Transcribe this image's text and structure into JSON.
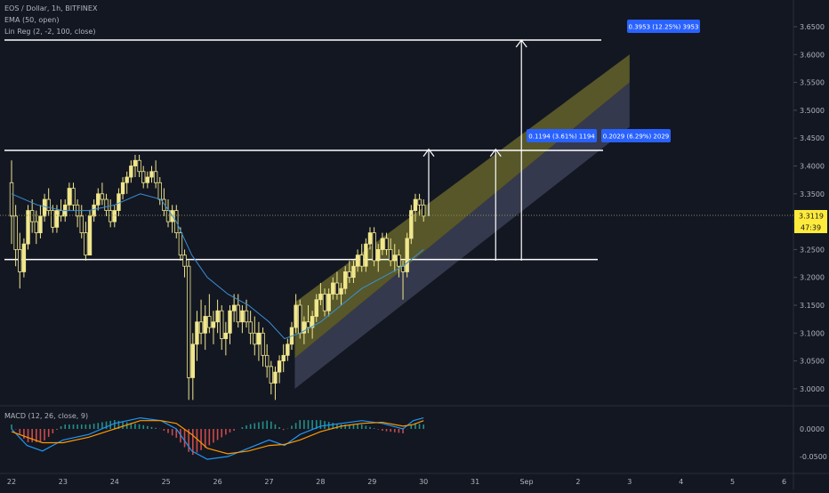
{
  "header": {
    "symbol_line": "EOS / Dollar, 1h, BITFINEX",
    "indicator_1": "EMA (50, open)",
    "indicator_2": "Lin Reg (2, -2, 100, close)"
  },
  "macd": {
    "label": "MACD (12, 26, close, 9)"
  },
  "price": {
    "last": "3.3119",
    "countdown": "47:39"
  },
  "annotations": [
    {
      "text": "0.1194 (3.61%) 1194"
    },
    {
      "text": "0.2029 (6.29%) 2029"
    },
    {
      "text": "0.3953 (12.25%) 3953"
    }
  ],
  "colors": {
    "background": "#131722",
    "candle": "#f0e68c",
    "ema": "#3a8fd8",
    "channel_upper": "#7d7a2e",
    "channel_lower": "#3c4055",
    "macd_line": "#2196f3",
    "signal_line": "#ff9800",
    "hist_up": "#26a69a",
    "hist_down": "#ef5350",
    "pill": "#2962ff",
    "price_tag": "#ffeb3b"
  },
  "chart_data": [
    {
      "type": "candlestick",
      "title": "EOS / Dollar, 1h, BITFINEX",
      "x": [
        "22",
        "23",
        "24",
        "25",
        "26",
        "27",
        "28",
        "29",
        "30",
        "31",
        "Sep",
        "2",
        "3",
        "4",
        "5",
        "6"
      ],
      "yticks": [
        "3.0000",
        "3.0500",
        "3.1000",
        "3.1500",
        "3.2000",
        "3.2500",
        "3.3000",
        "3.3500",
        "3.4000",
        "3.4500",
        "3.5000",
        "3.5500",
        "3.6000",
        "3.6500"
      ],
      "ylim": [
        2.98,
        3.67
      ],
      "grid": false,
      "candles": [
        [
          0.0,
          3.37,
          3.41,
          3.26,
          3.31
        ],
        [
          0.08,
          3.31,
          3.33,
          3.22,
          3.25
        ],
        [
          0.16,
          3.25,
          3.28,
          3.18,
          3.21
        ],
        [
          0.24,
          3.21,
          3.27,
          3.2,
          3.26
        ],
        [
          0.32,
          3.26,
          3.33,
          3.25,
          3.32
        ],
        [
          0.4,
          3.32,
          3.34,
          3.28,
          3.3
        ],
        [
          0.48,
          3.3,
          3.32,
          3.26,
          3.28
        ],
        [
          0.56,
          3.28,
          3.33,
          3.27,
          3.31
        ],
        [
          0.64,
          3.31,
          3.35,
          3.3,
          3.34
        ],
        [
          0.72,
          3.34,
          3.36,
          3.31,
          3.32
        ],
        [
          0.8,
          3.32,
          3.33,
          3.28,
          3.29
        ],
        [
          0.88,
          3.29,
          3.33,
          3.28,
          3.32
        ],
        [
          0.96,
          3.32,
          3.34,
          3.3,
          3.31
        ],
        [
          1.04,
          3.31,
          3.34,
          3.3,
          3.33
        ],
        [
          1.12,
          3.33,
          3.37,
          3.32,
          3.36
        ],
        [
          1.2,
          3.36,
          3.37,
          3.32,
          3.33
        ],
        [
          1.28,
          3.33,
          3.34,
          3.29,
          3.31
        ],
        [
          1.36,
          3.31,
          3.33,
          3.27,
          3.28
        ],
        [
          1.44,
          3.28,
          3.3,
          3.23,
          3.24
        ],
        [
          1.52,
          3.24,
          3.32,
          3.24,
          3.31
        ],
        [
          1.6,
          3.31,
          3.34,
          3.3,
          3.33
        ],
        [
          1.68,
          3.33,
          3.36,
          3.32,
          3.35
        ],
        [
          1.76,
          3.35,
          3.37,
          3.33,
          3.34
        ],
        [
          1.84,
          3.34,
          3.35,
          3.31,
          3.32
        ],
        [
          1.92,
          3.32,
          3.34,
          3.29,
          3.3
        ],
        [
          2.0,
          3.3,
          3.33,
          3.29,
          3.32
        ],
        [
          2.08,
          3.32,
          3.36,
          3.31,
          3.35
        ],
        [
          2.16,
          3.35,
          3.38,
          3.34,
          3.37
        ],
        [
          2.24,
          3.37,
          3.39,
          3.35,
          3.38
        ],
        [
          2.32,
          3.38,
          3.41,
          3.37,
          3.4
        ],
        [
          2.4,
          3.4,
          3.42,
          3.38,
          3.41
        ],
        [
          2.48,
          3.41,
          3.42,
          3.38,
          3.39
        ],
        [
          2.56,
          3.39,
          3.4,
          3.36,
          3.37
        ],
        [
          2.64,
          3.37,
          3.39,
          3.36,
          3.38
        ],
        [
          2.72,
          3.38,
          3.4,
          3.37,
          3.39
        ],
        [
          2.8,
          3.39,
          3.41,
          3.36,
          3.37
        ],
        [
          2.88,
          3.37,
          3.38,
          3.33,
          3.34
        ],
        [
          2.96,
          3.34,
          3.36,
          3.31,
          3.32
        ],
        [
          3.04,
          3.32,
          3.34,
          3.29,
          3.3
        ],
        [
          3.12,
          3.3,
          3.33,
          3.28,
          3.32
        ],
        [
          3.2,
          3.32,
          3.33,
          3.27,
          3.28
        ],
        [
          3.28,
          3.28,
          3.29,
          3.23,
          3.24
        ],
        [
          3.36,
          3.24,
          3.25,
          3.2,
          3.22
        ],
        [
          3.44,
          3.22,
          3.23,
          2.98,
          3.02
        ],
        [
          3.52,
          3.02,
          3.1,
          2.98,
          3.08
        ],
        [
          3.6,
          3.08,
          3.14,
          3.05,
          3.12
        ],
        [
          3.68,
          3.12,
          3.16,
          3.08,
          3.1
        ],
        [
          3.76,
          3.1,
          3.15,
          3.07,
          3.13
        ],
        [
          3.84,
          3.13,
          3.17,
          3.1,
          3.11
        ],
        [
          3.92,
          3.11,
          3.14,
          3.08,
          3.12
        ],
        [
          4.0,
          3.12,
          3.16,
          3.1,
          3.14
        ],
        [
          4.08,
          3.14,
          3.15,
          3.07,
          3.09
        ],
        [
          4.16,
          3.09,
          3.12,
          3.06,
          3.1
        ],
        [
          4.24,
          3.1,
          3.15,
          3.08,
          3.14
        ],
        [
          4.32,
          3.14,
          3.17,
          3.12,
          3.15
        ],
        [
          4.4,
          3.15,
          3.17,
          3.11,
          3.12
        ],
        [
          4.48,
          3.12,
          3.15,
          3.1,
          3.14
        ],
        [
          4.56,
          3.14,
          3.16,
          3.11,
          3.12
        ],
        [
          4.64,
          3.12,
          3.14,
          3.08,
          3.1
        ],
        [
          4.72,
          3.1,
          3.13,
          3.06,
          3.08
        ],
        [
          4.8,
          3.08,
          3.12,
          3.05,
          3.1
        ],
        [
          4.88,
          3.1,
          3.11,
          3.04,
          3.06
        ],
        [
          4.96,
          3.06,
          3.08,
          3.02,
          3.04
        ],
        [
          5.04,
          3.04,
          3.05,
          2.99,
          3.01
        ],
        [
          5.12,
          3.01,
          3.04,
          2.98,
          3.03
        ],
        [
          5.2,
          3.03,
          3.06,
          3.01,
          3.05
        ],
        [
          5.28,
          3.05,
          3.08,
          3.03,
          3.06
        ],
        [
          5.36,
          3.06,
          3.09,
          3.05,
          3.08
        ],
        [
          5.44,
          3.08,
          3.12,
          3.07,
          3.11
        ],
        [
          5.52,
          3.11,
          3.17,
          3.1,
          3.15
        ],
        [
          5.6,
          3.15,
          3.16,
          3.09,
          3.1
        ],
        [
          5.68,
          3.1,
          3.13,
          3.08,
          3.12
        ],
        [
          5.76,
          3.12,
          3.15,
          3.1,
          3.11
        ],
        [
          5.84,
          3.11,
          3.14,
          3.09,
          3.13
        ],
        [
          5.92,
          3.13,
          3.17,
          3.12,
          3.16
        ],
        [
          6.0,
          3.16,
          3.19,
          3.15,
          3.17
        ],
        [
          6.08,
          3.17,
          3.18,
          3.13,
          3.14
        ],
        [
          6.16,
          3.14,
          3.18,
          3.13,
          3.17
        ],
        [
          6.24,
          3.17,
          3.2,
          3.16,
          3.19
        ],
        [
          6.32,
          3.19,
          3.21,
          3.16,
          3.17
        ],
        [
          6.4,
          3.17,
          3.19,
          3.15,
          3.18
        ],
        [
          6.48,
          3.18,
          3.22,
          3.17,
          3.21
        ],
        [
          6.56,
          3.21,
          3.23,
          3.19,
          3.2
        ],
        [
          6.64,
          3.2,
          3.23,
          3.19,
          3.22
        ],
        [
          6.72,
          3.22,
          3.25,
          3.21,
          3.24
        ],
        [
          6.8,
          3.24,
          3.26,
          3.21,
          3.22
        ],
        [
          6.88,
          3.22,
          3.27,
          3.21,
          3.26
        ],
        [
          6.96,
          3.26,
          3.29,
          3.25,
          3.28
        ],
        [
          7.04,
          3.28,
          3.29,
          3.22,
          3.23
        ],
        [
          7.12,
          3.23,
          3.26,
          3.21,
          3.25
        ],
        [
          7.2,
          3.25,
          3.28,
          3.24,
          3.27
        ],
        [
          7.28,
          3.27,
          3.28,
          3.24,
          3.25
        ],
        [
          7.36,
          3.25,
          3.27,
          3.22,
          3.23
        ],
        [
          7.44,
          3.23,
          3.26,
          3.21,
          3.24
        ],
        [
          7.52,
          3.24,
          3.25,
          3.2,
          3.22
        ],
        [
          7.6,
          3.22,
          3.23,
          3.16,
          3.21
        ],
        [
          7.68,
          3.21,
          3.28,
          3.2,
          3.27
        ],
        [
          7.76,
          3.27,
          3.33,
          3.26,
          3.32
        ],
        [
          7.84,
          3.32,
          3.35,
          3.3,
          3.34
        ],
        [
          7.92,
          3.34,
          3.35,
          3.31,
          3.33
        ],
        [
          8.0,
          3.33,
          3.34,
          3.3,
          3.31
        ]
      ],
      "ema": [
        [
          0.0,
          3.35
        ],
        [
          0.5,
          3.33
        ],
        [
          1.0,
          3.32
        ],
        [
          1.5,
          3.32
        ],
        [
          2.0,
          3.33
        ],
        [
          2.5,
          3.35
        ],
        [
          2.9,
          3.34
        ],
        [
          3.2,
          3.3
        ],
        [
          3.5,
          3.24
        ],
        [
          3.8,
          3.2
        ],
        [
          4.2,
          3.17
        ],
        [
          4.6,
          3.15
        ],
        [
          5.0,
          3.12
        ],
        [
          5.3,
          3.09
        ],
        [
          5.6,
          3.1
        ],
        [
          6.0,
          3.12
        ],
        [
          6.4,
          3.15
        ],
        [
          6.8,
          3.18
        ],
        [
          7.2,
          3.2
        ],
        [
          7.6,
          3.22
        ],
        [
          8.0,
          3.25
        ]
      ],
      "levels": [
        3.428,
        3.232,
        3.626
      ],
      "channel": {
        "x": [
          5.5,
          12.0
        ],
        "upper": [
          3.155,
          3.6
        ],
        "mid": [
          3.055,
          3.55
        ],
        "lower": [
          3.0,
          3.47
        ]
      },
      "arrows": [
        {
          "x": 8.1,
          "from": 3.31,
          "to": 3.43
        },
        {
          "x": 9.4,
          "from": 3.23,
          "to": 3.43
        },
        {
          "x": 9.9,
          "from": 3.23,
          "to": 3.626
        }
      ]
    },
    {
      "type": "macd",
      "title": "MACD (12, 26, close, 9)",
      "yticks": [
        "0.0000",
        "-0.0500"
      ],
      "ylim": [
        -0.07,
        0.03
      ],
      "macd_line": [
        [
          0.0,
          0.0
        ],
        [
          0.3,
          -0.03
        ],
        [
          0.6,
          -0.04
        ],
        [
          1.0,
          -0.02
        ],
        [
          1.5,
          -0.01
        ],
        [
          2.0,
          0.01
        ],
        [
          2.5,
          0.02
        ],
        [
          2.9,
          0.015
        ],
        [
          3.2,
          0.0
        ],
        [
          3.5,
          -0.04
        ],
        [
          3.8,
          -0.055
        ],
        [
          4.2,
          -0.05
        ],
        [
          4.6,
          -0.035
        ],
        [
          5.0,
          -0.02
        ],
        [
          5.3,
          -0.03
        ],
        [
          5.6,
          -0.01
        ],
        [
          6.0,
          0.005
        ],
        [
          6.4,
          0.01
        ],
        [
          6.8,
          0.015
        ],
        [
          7.2,
          0.01
        ],
        [
          7.6,
          0.0
        ],
        [
          7.8,
          0.015
        ],
        [
          8.0,
          0.02
        ]
      ],
      "signal_line": [
        [
          0.0,
          -0.005
        ],
        [
          0.3,
          -0.015
        ],
        [
          0.6,
          -0.025
        ],
        [
          1.0,
          -0.025
        ],
        [
          1.5,
          -0.015
        ],
        [
          2.0,
          0.0
        ],
        [
          2.5,
          0.015
        ],
        [
          2.9,
          0.015
        ],
        [
          3.2,
          0.01
        ],
        [
          3.5,
          -0.01
        ],
        [
          3.8,
          -0.035
        ],
        [
          4.2,
          -0.045
        ],
        [
          4.6,
          -0.04
        ],
        [
          5.0,
          -0.03
        ],
        [
          5.3,
          -0.028
        ],
        [
          5.6,
          -0.02
        ],
        [
          6.0,
          -0.005
        ],
        [
          6.4,
          0.005
        ],
        [
          6.8,
          0.01
        ],
        [
          7.2,
          0.012
        ],
        [
          7.6,
          0.005
        ],
        [
          7.8,
          0.008
        ],
        [
          8.0,
          0.015
        ]
      ]
    }
  ]
}
